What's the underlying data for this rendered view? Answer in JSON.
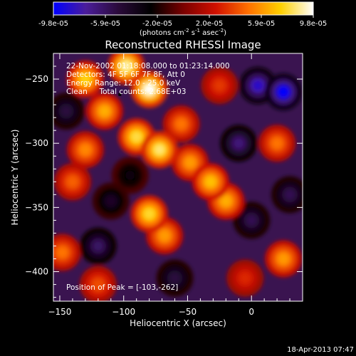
{
  "colorbar": {
    "tick_labels": [
      "-9.8e-05",
      "-5.9e-05",
      "-2.0e-05",
      "2.0e-05",
      "5.9e-05",
      "9.8e-05"
    ],
    "units_prefix": "(photons cm",
    "units_exp1": "-2",
    "units_mid": " s",
    "units_exp2": "-1",
    "units_mid2": " asec",
    "units_exp3": "-2",
    "units_suffix": ")"
  },
  "chart_data": {
    "type": "heatmap",
    "title": "Reconstructed RHESSI Image",
    "xlabel": "Heliocentric X (arcsec)",
    "ylabel": "Heliocentric Y (arcsec)",
    "xlim": [
      -155,
      40
    ],
    "ylim": [
      -423,
      -230
    ],
    "x_ticks": [
      -150,
      -100,
      -50,
      0
    ],
    "y_ticks": [
      -250,
      -300,
      -350,
      -400
    ],
    "colorbar_range": [
      -9.8e-05,
      9.8e-05
    ],
    "colormap": [
      "#0000ff",
      "#4b1d9a",
      "#2a0a3a",
      "#000000",
      "#7a0000",
      "#d01000",
      "#ff7000",
      "#ffd000",
      "#ffffff"
    ],
    "peak_marker": {
      "x": -103,
      "y": -262
    },
    "intensity_blobs": [
      {
        "x": -130,
        "y": -250,
        "v": 7.5e-05
      },
      {
        "x": -98,
        "y": -240,
        "v": 9e-05
      },
      {
        "x": -80,
        "y": -258,
        "v": 9.8e-05
      },
      {
        "x": -115,
        "y": -275,
        "v": 6.5e-05
      },
      {
        "x": -90,
        "y": -295,
        "v": 8e-05
      },
      {
        "x": -72,
        "y": -305,
        "v": 8.5e-05
      },
      {
        "x": -55,
        "y": -285,
        "v": 5e-05
      },
      {
        "x": -48,
        "y": -315,
        "v": 6e-05
      },
      {
        "x": -32,
        "y": -330,
        "v": 7e-05
      },
      {
        "x": -20,
        "y": -345,
        "v": 6.5e-05
      },
      {
        "x": -80,
        "y": -355,
        "v": 7.8e-05
      },
      {
        "x": -68,
        "y": -372,
        "v": 6e-05
      },
      {
        "x": -130,
        "y": -305,
        "v": 5.5e-05
      },
      {
        "x": -140,
        "y": -330,
        "v": 4.5e-05
      },
      {
        "x": -148,
        "y": -385,
        "v": 5e-05
      },
      {
        "x": -120,
        "y": -410,
        "v": 4e-05
      },
      {
        "x": 20,
        "y": -300,
        "v": 5e-05
      },
      {
        "x": 25,
        "y": -390,
        "v": 6e-05
      },
      {
        "x": -25,
        "y": -255,
        "v": 3.5e-05
      },
      {
        "x": -5,
        "y": -405,
        "v": 3e-05
      },
      {
        "x": -110,
        "y": -345,
        "v": -4e-05
      },
      {
        "x": -120,
        "y": -380,
        "v": -6e-05
      },
      {
        "x": -60,
        "y": -405,
        "v": -5e-05
      },
      {
        "x": 5,
        "y": -255,
        "v": -8.5e-05
      },
      {
        "x": 25,
        "y": -260,
        "v": -9.8e-05
      },
      {
        "x": -10,
        "y": -300,
        "v": -6.5e-05
      },
      {
        "x": 0,
        "y": -360,
        "v": -5.5e-05
      },
      {
        "x": -145,
        "y": -275,
        "v": -5e-05
      },
      {
        "x": -95,
        "y": -325,
        "v": -3e-05
      },
      {
        "x": 30,
        "y": -340,
        "v": -5.5e-05
      }
    ]
  },
  "annotations": {
    "time_range": "22-Nov-2002 01:18:08.000 to 01:23:14.000",
    "detectors": "Detectors: 4F 5F 6F 7F 8F, Att 0",
    "energy_range": "Energy Range: 12.0 - 25.0 keV",
    "method_counts": "Clean     Total counts: 2.68E+03",
    "peak_position": "Position of Peak = [-103,-262]"
  },
  "footer": {
    "date_time": "18-Apr-2013 07:47"
  }
}
